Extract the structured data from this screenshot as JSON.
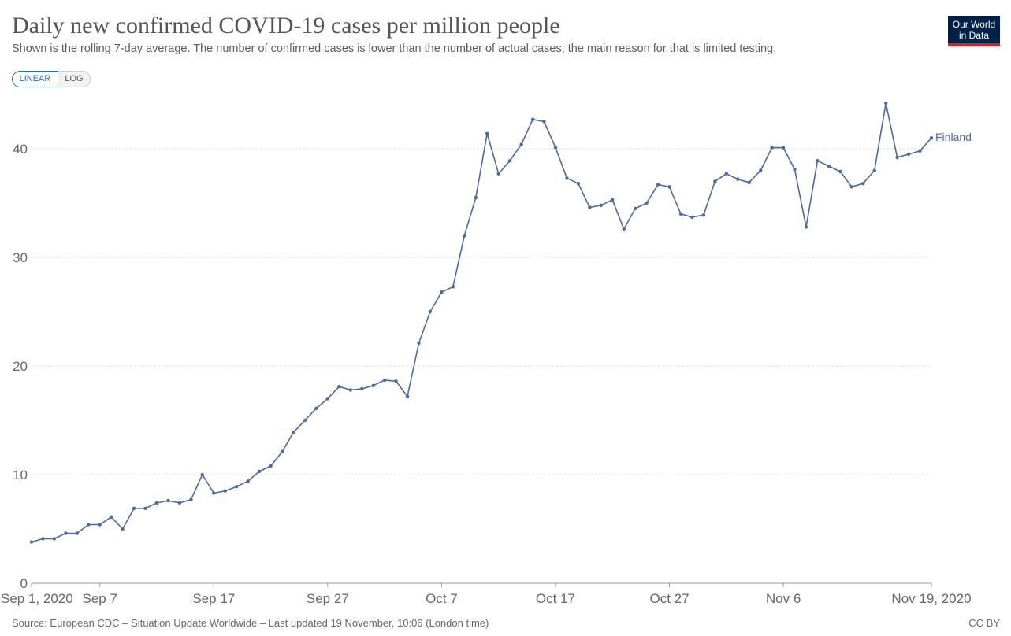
{
  "header": {
    "title": "Daily new confirmed COVID-19 cases per million people",
    "subtitle": "Shown is the rolling 7-day average. The number of confirmed cases is lower than the number of actual cases; the main reason for that is limited testing.",
    "logo_line1": "Our World",
    "logo_line2": "in Data"
  },
  "controls": {
    "linear_label": "LINEAR",
    "log_label": "LOG",
    "selected": "LINEAR"
  },
  "footer": {
    "source": "Source: European CDC – Situation Update Worldwide – Last updated 19 November, 10:06 (London time)",
    "license": "CC BY"
  },
  "colors": {
    "series": "#4c6a9c",
    "grid": "#dddddd",
    "axis": "#999999",
    "tick_text": "#666666"
  },
  "chart_data": {
    "type": "line",
    "title": "Daily new confirmed COVID-19 cases per million people",
    "x_start": "2020-09-01",
    "x_end": "2020-11-19",
    "xlim": [
      "2020-09-01",
      "2020-11-19"
    ],
    "ylim": [
      0,
      45
    ],
    "y_ticks": [
      0,
      10,
      20,
      30,
      40
    ],
    "x_ticks": [
      {
        "date": "2020-09-01",
        "label": "Sep 1, 2020"
      },
      {
        "date": "2020-09-07",
        "label": "Sep 7"
      },
      {
        "date": "2020-09-17",
        "label": "Sep 17"
      },
      {
        "date": "2020-09-27",
        "label": "Sep 27"
      },
      {
        "date": "2020-10-07",
        "label": "Oct 7"
      },
      {
        "date": "2020-10-17",
        "label": "Oct 17"
      },
      {
        "date": "2020-10-27",
        "label": "Oct 27"
      },
      {
        "date": "2020-11-06",
        "label": "Nov 6"
      },
      {
        "date": "2020-11-19",
        "label": "Nov 19, 2020"
      }
    ],
    "grid": true,
    "series": [
      {
        "name": "Finland",
        "values": [
          3.8,
          4.1,
          4.1,
          4.6,
          4.6,
          5.4,
          5.4,
          6.1,
          5.0,
          6.9,
          6.9,
          7.4,
          7.6,
          7.4,
          7.7,
          10.0,
          8.3,
          8.5,
          8.9,
          9.4,
          10.3,
          10.8,
          12.1,
          13.9,
          15.0,
          16.1,
          17.0,
          18.1,
          17.8,
          17.9,
          18.2,
          18.7,
          18.6,
          17.2,
          22.1,
          25.0,
          26.8,
          27.3,
          32.0,
          35.5,
          41.4,
          37.7,
          38.9,
          40.4,
          42.7,
          42.5,
          40.1,
          37.3,
          36.8,
          34.6,
          34.8,
          35.3,
          32.6,
          34.5,
          35.0,
          36.7,
          36.5,
          34.0,
          33.7,
          33.9,
          37.0,
          37.7,
          37.2,
          36.9,
          38.0,
          40.1,
          40.1,
          38.1,
          32.8,
          38.9,
          38.4,
          37.9,
          36.5,
          36.8,
          38.0,
          44.2,
          39.2,
          39.5,
          39.8,
          41.0
        ]
      }
    ]
  }
}
